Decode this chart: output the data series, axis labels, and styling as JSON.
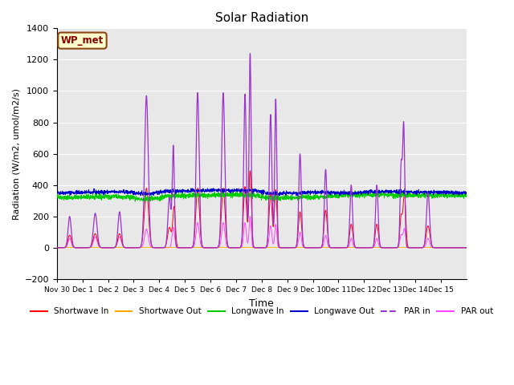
{
  "title": "Solar Radiation",
  "xlabel": "Time",
  "ylabel": "Radiation (W/m2, umol/m2/s)",
  "ylim": [
    -200,
    1400
  ],
  "yticks": [
    -200,
    0,
    200,
    400,
    600,
    800,
    1000,
    1200,
    1400
  ],
  "xlim": [
    0,
    16
  ],
  "xtick_positions": [
    0,
    1,
    2,
    3,
    4,
    5,
    6,
    7,
    8,
    9,
    10,
    11,
    12,
    13,
    14,
    15
  ],
  "xtick_labels": [
    "Nov 30",
    "Dec 1",
    "Dec 2",
    "Dec 3",
    "Dec 4",
    "Dec 5",
    "Dec 6",
    "Dec 7",
    "Dec 8",
    "Dec 9",
    "Dec 10",
    "Dec 11",
    "Dec 12",
    "Dec 13",
    "Dec 14",
    "Dec 15"
  ],
  "annotation_text": "WP_met",
  "annotation_box_color": "#ffffcc",
  "annotation_box_edge": "#8B4513",
  "annotation_text_color": "#8B0000",
  "background_color": "#e8e8e8",
  "legend_items": [
    {
      "label": "Shortwave In",
      "color": "#ff0000",
      "linestyle": "-"
    },
    {
      "label": "Shortwave Out",
      "color": "#ffa500",
      "linestyle": "-"
    },
    {
      "label": "Longwave In",
      "color": "#00cc00",
      "linestyle": "-"
    },
    {
      "label": "Longwave Out",
      "color": "#0000cc",
      "linestyle": "-"
    },
    {
      "label": "PAR in",
      "color": "#9933cc",
      "linestyle": "-"
    },
    {
      "label": "PAR out",
      "color": "#ff44ff",
      "linestyle": "-"
    }
  ]
}
